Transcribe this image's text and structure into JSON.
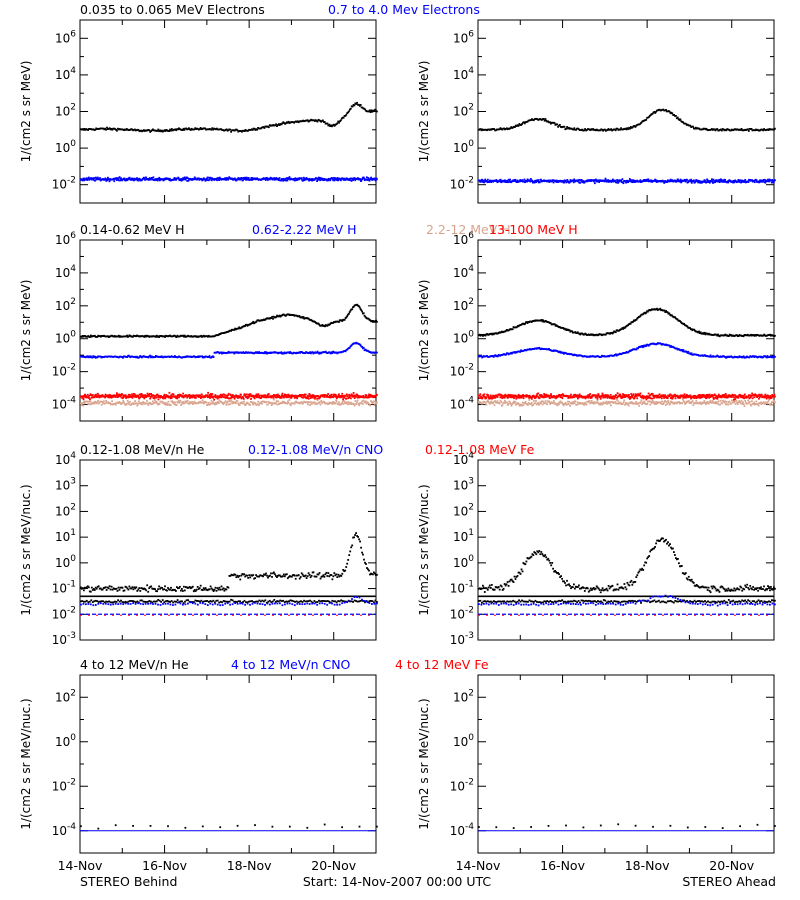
{
  "figure": {
    "footer_left": "STEREO Behind",
    "footer_center": "Start: 14-Nov-2007 00:00 UTC",
    "footer_right": "STEREO Ahead",
    "x_ticks": [
      "14-Nov",
      "16-Nov",
      "18-Nov",
      "20-Nov"
    ]
  },
  "rows": [
    {
      "legend": [
        {
          "text": "0.035 to 0.065 MeV Electrons",
          "color": "#000000"
        },
        {
          "text": "0.7 to 4.0 Mev Electrons",
          "color": "#0000ff"
        }
      ],
      "ylabel": "1/(cm2 s sr MeV)",
      "yticks": [
        [
          "-2",
          "10"
        ],
        [
          "0",
          "10"
        ],
        [
          "2",
          "10"
        ],
        [
          "4",
          "10"
        ],
        [
          "6",
          "10"
        ]
      ]
    },
    {
      "legend": [
        {
          "text": "0.14-0.62 MeV H",
          "color": "#000000"
        },
        {
          "text": "0.62-2.22 MeV H",
          "color": "#0000ff"
        },
        {
          "text": "2.2-12 MeV H",
          "color": "#d9a58f"
        },
        {
          "text": "13-100 MeV H",
          "color": "#ff0000"
        }
      ],
      "ylabel": "1/(cm2 s sr MeV)",
      "yticks": [
        [
          "-4",
          "10"
        ],
        [
          "-2",
          "10"
        ],
        [
          "0",
          "10"
        ],
        [
          "2",
          "10"
        ],
        [
          "4",
          "10"
        ],
        [
          "6",
          "10"
        ]
      ]
    },
    {
      "legend": [
        {
          "text": "0.12-1.08 MeV/n He",
          "color": "#000000"
        },
        {
          "text": "0.12-1.08 MeV/n CNO",
          "color": "#0000ff"
        },
        {
          "text": "0.12-1.08 MeV Fe",
          "color": "#ff0000"
        }
      ],
      "ylabel": "1/(cm2 s sr MeV/nuc.)",
      "yticks": [
        [
          "-3",
          "10"
        ],
        [
          "-2",
          "10"
        ],
        [
          "-1",
          "10"
        ],
        [
          "0",
          "10"
        ],
        [
          "1",
          "10"
        ],
        [
          "2",
          "10"
        ],
        [
          "3",
          "10"
        ],
        [
          "4",
          "10"
        ]
      ]
    },
    {
      "legend": [
        {
          "text": "4 to 12 MeV/n He",
          "color": "#000000"
        },
        {
          "text": "4 to 12 MeV/n CNO",
          "color": "#0000ff"
        },
        {
          "text": "4 to 12 MeV Fe",
          "color": "#ff0000"
        }
      ],
      "ylabel": "1/(cm2 s sr MeV/nuc.)",
      "yticks": [
        [
          "-4",
          "10"
        ],
        [
          "-2",
          "10"
        ],
        [
          "0",
          "10"
        ],
        [
          "2",
          "10"
        ]
      ]
    }
  ],
  "chart_data": [
    {
      "type": "scatter",
      "panel": "electrons-behind",
      "y_scale": "log",
      "ylim": [
        0.001,
        10000000
      ],
      "x": [
        "14-Nov",
        "15-Nov",
        "16-Nov",
        "17-Nov",
        "18-Nov",
        "19-Nov",
        "20-Nov",
        "21-Nov"
      ],
      "series": [
        {
          "name": "0.035 to 0.065 MeV Electrons",
          "values": [
            10,
            10,
            10,
            12,
            25,
            60,
            80,
            100
          ]
        },
        {
          "name": "0.7 to 4.0 Mev Electrons",
          "values": [
            0.02,
            0.02,
            0.02,
            0.02,
            0.02,
            0.02,
            0.02,
            0.02
          ]
        }
      ]
    },
    {
      "type": "scatter",
      "panel": "electrons-ahead",
      "y_scale": "log",
      "ylim": [
        0.001,
        10000000
      ],
      "x": [
        "14-Nov",
        "15-Nov",
        "16-Nov",
        "17-Nov",
        "18-Nov",
        "19-Nov",
        "20-Nov",
        "21-Nov"
      ],
      "series": [
        {
          "name": "0.035 to 0.065 MeV Electrons",
          "values": [
            10,
            25,
            40,
            12,
            60,
            100,
            15,
            10
          ]
        },
        {
          "name": "0.7 to 4.0 Mev Electrons",
          "values": [
            0.015,
            0.015,
            0.015,
            0.015,
            0.015,
            0.015,
            0.015,
            0.015
          ]
        }
      ]
    },
    {
      "type": "scatter",
      "panel": "protons-behind",
      "y_scale": "log",
      "ylim": [
        1e-05,
        1000000
      ],
      "x": [
        "14-Nov",
        "15-Nov",
        "16-Nov",
        "17-Nov",
        "18-Nov",
        "19-Nov",
        "20-Nov",
        "21-Nov"
      ],
      "series": [
        {
          "name": "0.14-0.62 MeV H",
          "values": [
            1.5,
            1.0,
            1.0,
            1.2,
            8,
            20,
            20,
            60
          ]
        },
        {
          "name": "0.62-2.22 MeV H",
          "values": [
            0.1,
            0.08,
            0.08,
            0.1,
            0.15,
            0.15,
            0.15,
            0.8
          ]
        },
        {
          "name": "2.2-12 MeV H",
          "values": [
            0.0001,
            0.0001,
            0.0001,
            0.0001,
            0.0001,
            0.0001,
            0.0001,
            0.0001
          ]
        },
        {
          "name": "13-100 MeV H",
          "values": [
            0.0003,
            0.0003,
            0.0003,
            0.0003,
            0.0003,
            0.0003,
            0.0003,
            0.0003
          ]
        }
      ]
    },
    {
      "type": "scatter",
      "panel": "protons-ahead",
      "y_scale": "log",
      "ylim": [
        1e-05,
        1000000
      ],
      "x": [
        "14-Nov",
        "15-Nov",
        "16-Nov",
        "17-Nov",
        "18-Nov",
        "19-Nov",
        "20-Nov",
        "21-Nov"
      ],
      "series": [
        {
          "name": "0.14-0.62 MeV H",
          "values": [
            1.5,
            8,
            20,
            3,
            15,
            60,
            3,
            1.5
          ]
        },
        {
          "name": "0.62-2.22 MeV H",
          "values": [
            0.1,
            0.3,
            0.5,
            0.12,
            0.3,
            0.6,
            0.12,
            0.08
          ]
        },
        {
          "name": "2.2-12 MeV H",
          "values": [
            0.0001,
            0.0001,
            0.0001,
            0.0001,
            0.0001,
            0.0001,
            0.0001,
            0.0001
          ]
        },
        {
          "name": "13-100 MeV H",
          "values": [
            0.0003,
            0.0003,
            0.0003,
            0.0003,
            0.0003,
            0.0003,
            0.0003,
            0.0003
          ]
        }
      ]
    },
    {
      "type": "scatter",
      "panel": "heavy-low-behind",
      "y_scale": "log",
      "ylim": [
        0.001,
        10000
      ],
      "x": [
        "14-Nov",
        "15-Nov",
        "16-Nov",
        "17-Nov",
        "18-Nov",
        "19-Nov",
        "20-Nov",
        "21-Nov"
      ],
      "series": [
        {
          "name": "0.12-1.08 MeV/n He",
          "values": [
            0.1,
            0.1,
            0.1,
            0.1,
            0.15,
            0.3,
            0.3,
            10
          ]
        },
        {
          "name": "0.12-1.08 MeV/n CNO",
          "values": [
            0.01,
            0.01,
            0.01,
            0.02,
            0.02,
            0.02,
            0.02,
            0.05
          ]
        },
        {
          "name": "0.12-1.08 MeV Fe",
          "values": [
            0.01,
            0.01,
            0.01,
            0.01,
            0.01,
            0.01,
            0.01,
            0.01
          ]
        }
      ]
    },
    {
      "type": "scatter",
      "panel": "heavy-low-ahead",
      "y_scale": "log",
      "ylim": [
        0.001,
        10000
      ],
      "x": [
        "14-Nov",
        "15-Nov",
        "16-Nov",
        "17-Nov",
        "18-Nov",
        "19-Nov",
        "20-Nov",
        "21-Nov"
      ],
      "series": [
        {
          "name": "0.12-1.08 MeV/n He",
          "values": [
            0.1,
            0.5,
            2,
            0.2,
            0.5,
            8,
            0.3,
            0.1
          ]
        },
        {
          "name": "0.12-1.08 MeV/n CNO",
          "values": [
            0.01,
            0.02,
            0.03,
            0.02,
            0.02,
            0.05,
            0.02,
            0.01
          ]
        },
        {
          "name": "0.12-1.08 MeV Fe",
          "values": [
            0.01,
            0.01,
            0.01,
            0.01,
            0.01,
            0.01,
            0.01,
            0.01
          ]
        }
      ]
    },
    {
      "type": "scatter",
      "panel": "heavy-high-behind",
      "y_scale": "log",
      "ylim": [
        1e-05,
        10000
      ],
      "x": [
        "14-Nov",
        "15-Nov",
        "16-Nov",
        "17-Nov",
        "18-Nov",
        "19-Nov",
        "20-Nov",
        "21-Nov"
      ],
      "series": [
        {
          "name": "4 to 12 MeV/n He",
          "values": [
            0.0001,
            0.0001,
            0.0001,
            0.0001,
            0.0001,
            0.0001,
            0.0001,
            0.0001
          ]
        },
        {
          "name": "4 to 12 MeV/n CNO",
          "values": [
            0.0001,
            0.0001,
            0.0001,
            0.0001,
            0.0001,
            0.0001,
            0.0001,
            0.0001
          ]
        },
        {
          "name": "4 to 12 MeV Fe",
          "values": [
            0.0001,
            0.0001,
            0.0001,
            0.0001,
            0.0001,
            0.0001,
            0.0001,
            0.0001
          ]
        }
      ]
    },
    {
      "type": "scatter",
      "panel": "heavy-high-ahead",
      "y_scale": "log",
      "ylim": [
        1e-05,
        10000
      ],
      "x": [
        "14-Nov",
        "15-Nov",
        "16-Nov",
        "17-Nov",
        "18-Nov",
        "19-Nov",
        "20-Nov",
        "21-Nov"
      ],
      "series": [
        {
          "name": "4 to 12 MeV/n He",
          "values": [
            0.0001,
            0.0001,
            0.0001,
            0.0001,
            0.0001,
            0.0001,
            0.0001,
            0.0001
          ]
        },
        {
          "name": "4 to 12 MeV/n CNO",
          "values": [
            0.0001,
            0.0001,
            0.0001,
            0.0001,
            0.0001,
            0.0001,
            0.0001,
            0.0001
          ]
        },
        {
          "name": "4 to 12 MeV Fe",
          "values": [
            0.0001,
            0.0001,
            0.0001,
            0.0001,
            0.0001,
            0.0001,
            0.0001,
            0.0001
          ]
        }
      ]
    }
  ]
}
